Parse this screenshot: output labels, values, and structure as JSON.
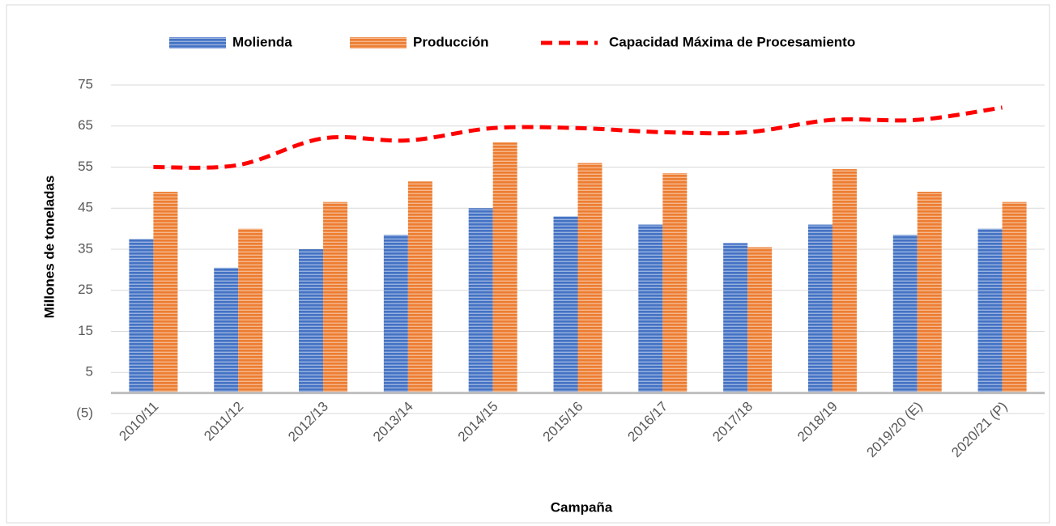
{
  "chart_data": {
    "type": "bar",
    "x_label": "Campaña",
    "y_label": "Millones de toneladas",
    "categories": [
      "2010/11",
      "2011/12",
      "2012/13",
      "2013/14",
      "2014/15",
      "2015/16",
      "2016/17",
      "2017/18",
      "2018/19",
      "2019/20 (E)",
      "2020/21 (P)"
    ],
    "series": [
      {
        "name": "Molienda",
        "type": "bar",
        "color": "#4472c4",
        "values": [
          37.5,
          30.5,
          35,
          38.5,
          45,
          43,
          41,
          36.5,
          41,
          38.5,
          40
        ]
      },
      {
        "name": "Producción",
        "type": "bar",
        "color": "#ed7d31",
        "values": [
          49,
          40,
          46.5,
          51.5,
          61,
          56,
          53.5,
          35.5,
          54.5,
          49,
          46.5
        ]
      },
      {
        "name": "Capacidad Máxima de Procesamiento",
        "type": "line",
        "color": "#ff0000",
        "values": [
          55,
          55.5,
          62,
          61.5,
          64.5,
          64.5,
          63.5,
          63.5,
          66.5,
          66.5,
          69.5
        ]
      }
    ],
    "ylim": [
      -5,
      75
    ],
    "yticks": [
      {
        "value": -5,
        "label": "(5)"
      },
      5,
      15,
      25,
      35,
      45,
      55,
      65,
      75
    ],
    "grid": true,
    "legend": "top"
  }
}
